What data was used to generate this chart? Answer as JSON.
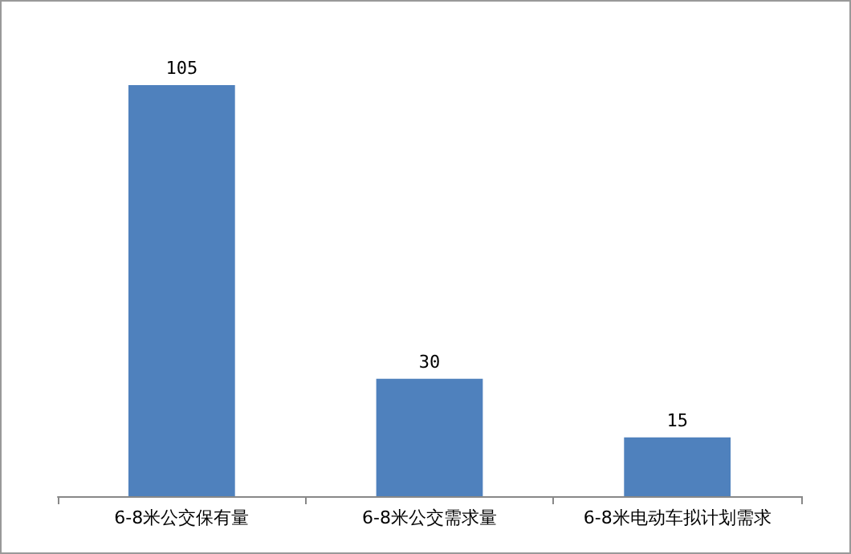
{
  "chart_data": {
    "type": "bar",
    "categories": [
      "6-8米公交保有量",
      "6-8米公交需求量",
      "6-8米电动车拟计划需求"
    ],
    "values": [
      105,
      30,
      15
    ],
    "color": "#4f81bd",
    "data_labels": true
  }
}
